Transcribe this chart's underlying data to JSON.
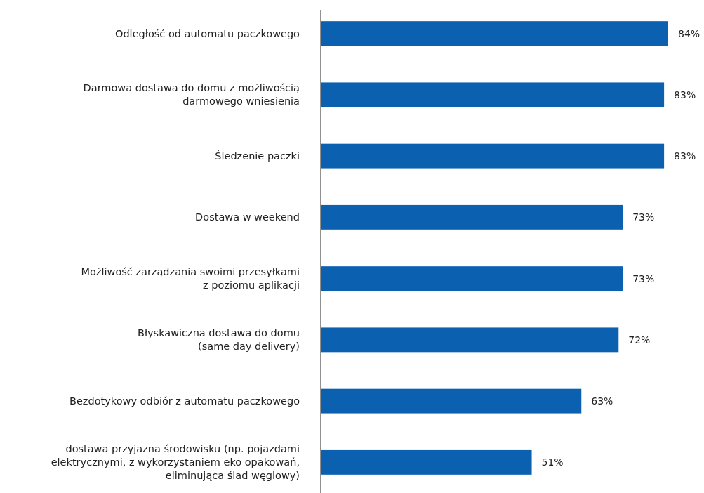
{
  "chart_data": {
    "type": "bar",
    "orientation": "horizontal",
    "categories": [
      "Odległość od automatu paczkowego",
      "Darmowa dostawa do domu z możliwością\ndarmowego wniesienia",
      "Śledzenie paczki",
      "Dostawa w weekend",
      "Możliwość zarządzania swoimi przesyłkami\nz poziomu aplikacji",
      "Błyskawiczna dostawa do domu\n(same day delivery)",
      "Bezdotykowy odbiór z automatu paczkowego",
      "dostawa przyjazna środowisku (np. pojazdami\nelektrycznymi, z wykorzystaniem eko opakowań,\neliminująca ślad węglowy)"
    ],
    "series": [
      {
        "color": "#0b60b0",
        "values": [
          84,
          83,
          83,
          73,
          73,
          72,
          63,
          51
        ],
        "value_labels": [
          "84%",
          "83%",
          "83%",
          "73%",
          "73%",
          "72%",
          "63%",
          "51%"
        ]
      }
    ]
  }
}
